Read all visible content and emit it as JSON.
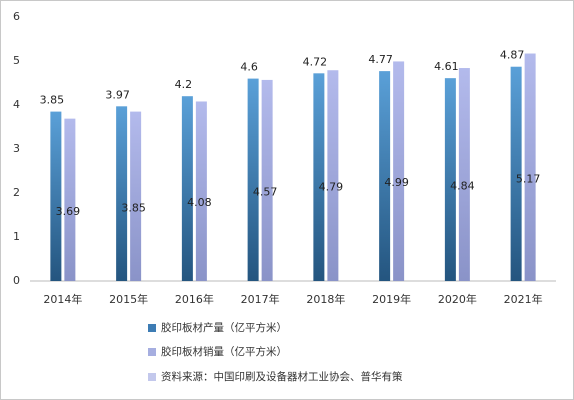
{
  "chart_data": {
    "type": "bar",
    "categories": [
      "2014年",
      "2015年",
      "2016年",
      "2017年",
      "2018年",
      "2019年",
      "2020年",
      "2021年"
    ],
    "series": [
      {
        "name": "胶印板材产量（亿平方米）",
        "color": "#3d7cb4",
        "values": [
          3.85,
          3.97,
          4.2,
          4.6,
          4.72,
          4.77,
          4.61,
          4.87
        ]
      },
      {
        "name": "胶印板材销量（亿平方米）",
        "color": "#a6aee0",
        "values": [
          3.69,
          3.85,
          4.08,
          4.57,
          4.79,
          4.99,
          4.84,
          5.17
        ]
      }
    ],
    "source": "资料来源：中国印刷及设备器材工业协会、普华有策",
    "ylim": [
      0,
      6
    ],
    "yticks": [
      0,
      1,
      2,
      3,
      4,
      5,
      6
    ],
    "grid": false
  }
}
